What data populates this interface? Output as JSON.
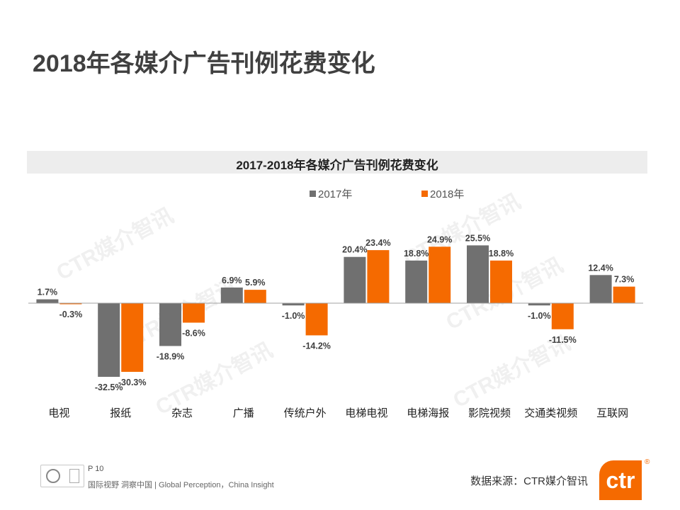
{
  "page": {
    "title": "2018年各媒介广告刊例花费变化",
    "page_number": "P 10",
    "tagline": "国际视野  洞察中国 |  Global Perception，China Insight",
    "source": "数据来源：CTR媒介智讯",
    "brand": "ctr",
    "registered_mark": "®",
    "watermark": "CTR媒介智讯"
  },
  "colors": {
    "series_2017": "#707070",
    "series_2018": "#f56a00",
    "axis": "#a0a0a0"
  },
  "chart_data": {
    "type": "bar",
    "title": "2017-2018年各媒介广告刊例花费变化",
    "categories": [
      "电视",
      "报纸",
      "杂志",
      "广播",
      "传统户外",
      "电梯电视",
      "电梯海报",
      "影院视频",
      "交通类视频",
      "互联网"
    ],
    "series": [
      {
        "name": "2017年",
        "values": [
          1.7,
          -32.5,
          -18.9,
          6.9,
          -1.0,
          20.4,
          18.8,
          25.5,
          -1.0,
          12.4
        ],
        "labels": [
          "1.7%",
          "-32.5%",
          "-18.9%",
          "6.9%",
          "-1.0%",
          "20.4%",
          "18.8%",
          "25.5%",
          "-1.0%",
          "12.4%"
        ]
      },
      {
        "name": "2018年",
        "values": [
          -0.3,
          -30.3,
          -8.6,
          5.9,
          -14.2,
          23.4,
          24.9,
          18.8,
          -11.5,
          7.3
        ],
        "labels": [
          "-0.3%",
          "-30.3%",
          "-8.6%",
          "5.9%",
          "-14.2%",
          "23.4%",
          "24.9%",
          "18.8%",
          "-11.5%",
          "7.3%"
        ]
      }
    ],
    "xlabel": "",
    "ylabel": "",
    "unit": "%",
    "ylim": [
      -35,
      27
    ],
    "grid": false,
    "legend": "top-center"
  }
}
